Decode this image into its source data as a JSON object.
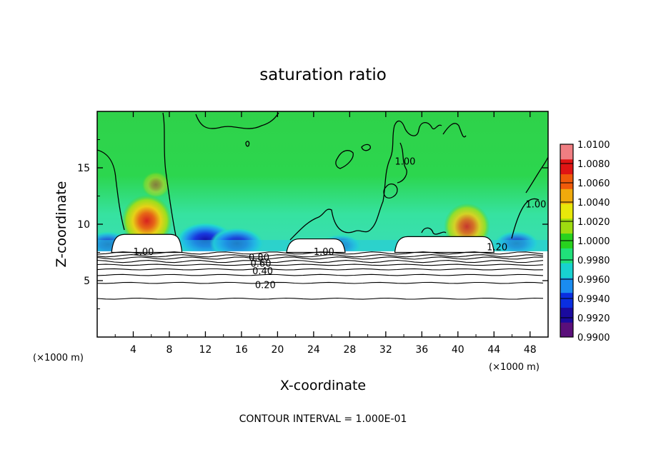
{
  "chart_data": {
    "type": "heatmap",
    "title": "saturation ratio",
    "xlabel": "X-coordinate",
    "ylabel": "Z-coordinate",
    "x_unit": "(×1000 m)",
    "y_unit": "(×1000 m)",
    "xlim": [
      0,
      50
    ],
    "ylim": [
      0,
      20
    ],
    "x_ticks": [
      "4",
      "8",
      "12",
      "16",
      "20",
      "24",
      "28",
      "32",
      "36",
      "40",
      "44",
      "48"
    ],
    "y_ticks": [
      "5",
      "10",
      "15"
    ],
    "colorbar": {
      "min": 0.99,
      "max": 1.01,
      "labels": [
        "0.9900",
        "0.9920",
        "0.9940",
        "0.9960",
        "0.9980",
        "1.0000",
        "1.0020",
        "1.0040",
        "1.0060",
        "1.0080",
        "1.0100"
      ],
      "colors": [
        "#5a0f7a",
        "#1a0a9e",
        "#0a2ee0",
        "#1a8cf0",
        "#18d2d0",
        "#20e07a",
        "#28d21e",
        "#9edc10",
        "#e8e80a",
        "#f0aa0c",
        "#f05a0a",
        "#e01414",
        "#f07e82"
      ]
    },
    "background_value": 1.0,
    "hotspots": [
      {
        "x": 5.5,
        "z": 10.3,
        "value": 1.0075
      },
      {
        "x": 41,
        "z": 9.8,
        "value": 1.0062
      },
      {
        "x": 6.5,
        "z": 13.5,
        "value": 1.001
      }
    ],
    "coldspots": [
      {
        "x": 12,
        "z": 8.6,
        "value": 0.9915
      },
      {
        "x": 15.5,
        "z": 8.3,
        "value": 0.993
      },
      {
        "x": 1.2,
        "z": 8.2,
        "value": 0.995
      },
      {
        "x": 46.5,
        "z": 8.3,
        "value": 0.9955
      },
      {
        "x": 27,
        "z": 8.1,
        "value": 0.9965
      },
      {
        "x": 40,
        "z": 8.3,
        "value": 0.9975
      }
    ],
    "contour_levels": [
      0.1,
      0.2,
      0.3,
      0.4,
      0.5,
      0.6,
      0.7,
      0.8,
      0.9
    ],
    "contour_z": [
      3.4,
      4.8,
      5.5,
      6.0,
      6.4,
      6.7,
      7.0,
      7.2,
      7.45
    ],
    "contour_labels": [
      {
        "text": "0.20",
        "x": 17.5,
        "z": 4.65
      },
      {
        "text": "0.40",
        "x": 17.2,
        "z": 5.9
      },
      {
        "text": "0.60",
        "x": 17.0,
        "z": 6.55
      },
      {
        "text": "0.80",
        "x": 16.8,
        "z": 7.1
      },
      {
        "text": "1.00",
        "x": 4.0,
        "z": 7.6
      },
      {
        "text": "1.00",
        "x": 24.0,
        "z": 7.6
      },
      {
        "text": "1.20",
        "x": 43.2,
        "z": 8.0
      },
      {
        "text": "1.00",
        "x": 33.0,
        "z": 15.6
      },
      {
        "text": "1.00",
        "x": 47.5,
        "z": 11.8
      }
    ],
    "clear_regions": [
      {
        "x0": 1.6,
        "x1": 9.4,
        "ztop": 9.1
      },
      {
        "x0": 21.0,
        "x1": 27.5,
        "ztop": 8.7
      },
      {
        "x0": 33.0,
        "x1": 44.0,
        "ztop": 8.9
      }
    ],
    "footer": "CONTOUR INTERVAL = 1.000E-01"
  }
}
